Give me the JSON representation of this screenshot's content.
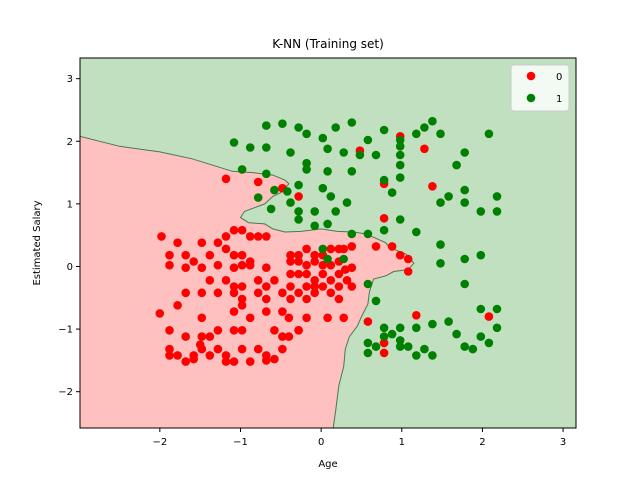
{
  "chart_data": {
    "type": "scatter",
    "title": "K-NN (Training set)",
    "xlabel": "Age",
    "ylabel": "Estimated Salary",
    "xlim": [
      -2.99,
      3.16
    ],
    "ylim": [
      -2.58,
      3.33
    ],
    "xticks": [
      -2,
      -1,
      0,
      1,
      2,
      3
    ],
    "yticks": [
      -2,
      -1,
      0,
      1,
      2,
      3
    ],
    "legend_position": "top-right",
    "background_regions": [
      {
        "class": "0",
        "color": "#ffc0c0",
        "description": "lower-left decision region"
      },
      {
        "class": "1",
        "color": "#c0e0c0",
        "description": "upper/right decision region"
      }
    ],
    "decision_boundary": {
      "color": "#4a7a4a",
      "points": [
        [
          -2.99,
          2.08
        ],
        [
          -2.5,
          1.92
        ],
        [
          -2.0,
          1.83
        ],
        [
          -1.6,
          1.72
        ],
        [
          -1.3,
          1.6
        ],
        [
          -1.1,
          1.52
        ],
        [
          -0.85,
          1.5
        ],
        [
          -0.6,
          1.46
        ],
        [
          -0.45,
          1.38
        ],
        [
          -0.4,
          1.32
        ],
        [
          -0.5,
          1.18
        ],
        [
          -0.6,
          1.12
        ],
        [
          -0.7,
          1.0
        ],
        [
          -0.95,
          0.88
        ],
        [
          -1.0,
          0.78
        ],
        [
          -0.9,
          0.7
        ],
        [
          -0.7,
          0.68
        ],
        [
          -0.6,
          0.6
        ],
        [
          -0.45,
          0.55
        ],
        [
          -0.25,
          0.56
        ],
        [
          0.0,
          0.6
        ],
        [
          0.2,
          0.56
        ],
        [
          0.4,
          0.55
        ],
        [
          0.55,
          0.52
        ],
        [
          0.68,
          0.45
        ],
        [
          0.8,
          0.38
        ],
        [
          0.85,
          0.3
        ],
        [
          0.95,
          0.25
        ],
        [
          1.05,
          0.2
        ],
        [
          1.15,
          0.05
        ],
        [
          1.08,
          -0.05
        ],
        [
          0.9,
          -0.08
        ],
        [
          0.8,
          -0.15
        ],
        [
          0.65,
          -0.2
        ],
        [
          0.6,
          -0.4
        ],
        [
          0.58,
          -0.6
        ],
        [
          0.5,
          -0.8
        ],
        [
          0.45,
          -0.95
        ],
        [
          0.35,
          -1.12
        ],
        [
          0.3,
          -1.32
        ],
        [
          0.28,
          -1.6
        ],
        [
          0.22,
          -1.9
        ],
        [
          0.18,
          -2.3
        ],
        [
          0.15,
          -2.58
        ]
      ]
    },
    "series": [
      {
        "name": "0",
        "color": "#ff0000",
        "points": [
          [
            -1.98,
            0.48
          ],
          [
            -1.78,
            0.38
          ],
          [
            -1.48,
            0.38
          ],
          [
            -1.28,
            0.38
          ],
          [
            -1.18,
            0.48
          ],
          [
            -1.08,
            0.58
          ],
          [
            -0.98,
            0.58
          ],
          [
            -0.88,
            0.48
          ],
          [
            -0.78,
            0.48
          ],
          [
            -0.68,
            0.48
          ],
          [
            -1.88,
            0.18
          ],
          [
            -1.68,
            0.18
          ],
          [
            -1.58,
            0.08
          ],
          [
            -1.38,
            0.18
          ],
          [
            -1.18,
            0.28
          ],
          [
            -1.08,
            0.18
          ],
          [
            -0.98,
            0.18
          ],
          [
            -0.88,
            0.08
          ],
          [
            -1.88,
            0.02
          ],
          [
            -1.68,
            -0.02
          ],
          [
            -1.48,
            -0.02
          ],
          [
            -1.28,
            0.02
          ],
          [
            -1.08,
            -0.02
          ],
          [
            -0.98,
            0.02
          ],
          [
            -0.88,
            0.02
          ],
          [
            -0.68,
            -0.02
          ],
          [
            -1.38,
            -0.22
          ],
          [
            -1.18,
            -0.22
          ],
          [
            -1.08,
            -0.32
          ],
          [
            -0.98,
            -0.32
          ],
          [
            -0.78,
            -0.22
          ],
          [
            -0.68,
            -0.32
          ],
          [
            -0.58,
            -0.22
          ],
          [
            -1.68,
            -0.42
          ],
          [
            -1.48,
            -0.42
          ],
          [
            -1.28,
            -0.42
          ],
          [
            -1.08,
            -0.42
          ],
          [
            -0.98,
            -0.52
          ],
          [
            -0.78,
            -0.42
          ],
          [
            -0.68,
            -0.52
          ],
          [
            -0.48,
            -0.42
          ],
          [
            -2.0,
            -0.75
          ],
          [
            -1.78,
            -0.62
          ],
          [
            -1.48,
            -0.82
          ],
          [
            -1.08,
            -0.72
          ],
          [
            -0.98,
            -0.62
          ],
          [
            -0.88,
            -0.82
          ],
          [
            -0.68,
            -0.72
          ],
          [
            -0.48,
            -0.72
          ],
          [
            -1.88,
            -1.02
          ],
          [
            -1.68,
            -1.12
          ],
          [
            -1.38,
            -1.12
          ],
          [
            -1.28,
            -1.02
          ],
          [
            -1.08,
            -1.02
          ],
          [
            -0.98,
            -1.02
          ],
          [
            -0.58,
            -1.02
          ],
          [
            -0.48,
            -1.12
          ],
          [
            -0.28,
            -1.02
          ],
          [
            -1.88,
            -1.32
          ],
          [
            -1.78,
            -1.42
          ],
          [
            -1.58,
            -1.42
          ],
          [
            -1.48,
            -1.32
          ],
          [
            -1.38,
            -1.42
          ],
          [
            -1.28,
            -1.32
          ],
          [
            -1.18,
            -1.42
          ],
          [
            -0.98,
            -1.32
          ],
          [
            -0.78,
            -1.32
          ],
          [
            -0.68,
            -1.42
          ],
          [
            -0.48,
            -1.32
          ],
          [
            -1.88,
            -1.42
          ],
          [
            -1.68,
            -1.52
          ],
          [
            -1.58,
            -1.48
          ],
          [
            -1.18,
            -1.52
          ],
          [
            -1.08,
            -1.52
          ],
          [
            -0.88,
            -1.52
          ],
          [
            -0.68,
            -1.5
          ],
          [
            -0.58,
            -1.48
          ],
          [
            -1.5,
            -1.25
          ],
          [
            -1.48,
            -1.12
          ],
          [
            -0.38,
            0.18
          ],
          [
            -0.28,
            0.18
          ],
          [
            -0.18,
            0.28
          ],
          [
            -0.08,
            0.18
          ],
          [
            0.02,
            0.18
          ],
          [
            0.12,
            0.28
          ],
          [
            0.22,
            0.28
          ],
          [
            0.28,
            0.28
          ],
          [
            -0.38,
            0.08
          ],
          [
            -0.28,
            0.08
          ],
          [
            -0.18,
            0.02
          ],
          [
            -0.08,
            0.08
          ],
          [
            0.02,
            0.02
          ],
          [
            0.12,
            0.02
          ],
          [
            0.22,
            0.08
          ],
          [
            -0.38,
            -0.12
          ],
          [
            -0.28,
            -0.12
          ],
          [
            -0.18,
            -0.12
          ],
          [
            -0.08,
            -0.22
          ],
          [
            0.02,
            -0.12
          ],
          [
            0.12,
            -0.22
          ],
          [
            0.22,
            -0.12
          ],
          [
            0.32,
            -0.22
          ],
          [
            -0.38,
            -0.32
          ],
          [
            -0.28,
            -0.42
          ],
          [
            -0.18,
            -0.32
          ],
          [
            -0.08,
            -0.32
          ],
          [
            0.02,
            -0.32
          ],
          [
            0.12,
            -0.42
          ],
          [
            0.22,
            -0.32
          ],
          [
            0.38,
            -0.32
          ],
          [
            -0.38,
            -0.52
          ],
          [
            -0.18,
            -0.52
          ],
          [
            -0.08,
            -0.42
          ],
          [
            0.22,
            -0.52
          ],
          [
            0.38,
            0.32
          ],
          [
            0.38,
            -0.02
          ],
          [
            0.3,
            -0.05
          ],
          [
            -0.4,
            -0.82
          ],
          [
            -0.18,
            -0.82
          ],
          [
            0.08,
            -0.82
          ],
          [
            0.28,
            -0.82
          ],
          [
            -0.28,
            -1.02
          ],
          [
            -0.4,
            -1.12
          ],
          [
            0.48,
            1.85
          ],
          [
            0.98,
            2.08
          ],
          [
            0.78,
            1.32
          ],
          [
            1.28,
            1.88
          ],
          [
            1.38,
            1.28
          ],
          [
            0.68,
            0.32
          ],
          [
            0.78,
            0.77
          ],
          [
            0.88,
            0.32
          ],
          [
            0.98,
            0.18
          ],
          [
            1.08,
            0.12
          ],
          [
            1.08,
            -0.08
          ],
          [
            1.18,
            -0.78
          ],
          [
            0.58,
            -0.88
          ],
          [
            0.78,
            -1.22
          ],
          [
            0.78,
            -1.38
          ],
          [
            -0.28,
            1.12
          ],
          [
            -0.48,
            1.25
          ],
          [
            -0.78,
            1.35
          ],
          [
            -1.18,
            1.4
          ],
          [
            2.08,
            -0.8
          ]
        ]
      },
      {
        "name": "1",
        "color": "#008000",
        "points": [
          [
            -0.68,
            2.25
          ],
          [
            -0.48,
            2.28
          ],
          [
            -0.28,
            2.22
          ],
          [
            -0.18,
            2.12
          ],
          [
            0.02,
            2.05
          ],
          [
            0.18,
            2.22
          ],
          [
            0.38,
            2.3
          ],
          [
            0.58,
            2.02
          ],
          [
            0.78,
            2.18
          ],
          [
            0.98,
            2.02
          ],
          [
            1.18,
            2.12
          ],
          [
            1.28,
            2.22
          ],
          [
            1.38,
            2.32
          ],
          [
            1.48,
            2.12
          ],
          [
            2.08,
            2.12
          ],
          [
            -1.08,
            1.98
          ],
          [
            -0.88,
            1.9
          ],
          [
            -0.68,
            1.9
          ],
          [
            -0.38,
            1.82
          ],
          [
            -0.18,
            1.65
          ],
          [
            0.08,
            1.88
          ],
          [
            0.28,
            1.82
          ],
          [
            0.48,
            1.78
          ],
          [
            0.68,
            1.78
          ],
          [
            0.98,
            1.92
          ],
          [
            0.98,
            1.78
          ],
          [
            0.98,
            1.62
          ],
          [
            1.68,
            1.62
          ],
          [
            1.78,
            1.82
          ],
          [
            -0.98,
            1.55
          ],
          [
            -0.68,
            1.48
          ],
          [
            -0.18,
            1.55
          ],
          [
            0.08,
            1.52
          ],
          [
            0.38,
            1.52
          ],
          [
            0.78,
            1.38
          ],
          [
            0.88,
            1.18
          ],
          [
            0.98,
            1.42
          ],
          [
            1.78,
            1.22
          ],
          [
            -0.58,
            1.22
          ],
          [
            -0.42,
            1.2
          ],
          [
            -0.28,
            1.3
          ],
          [
            0.02,
            1.25
          ],
          [
            0.12,
            1.12
          ],
          [
            0.32,
            1.02
          ],
          [
            -0.78,
            1.1
          ],
          [
            -0.62,
            0.92
          ],
          [
            -0.38,
            1.02
          ],
          [
            -0.28,
            0.88
          ],
          [
            -0.08,
            0.88
          ],
          [
            0.18,
            0.88
          ],
          [
            1.48,
            1.02
          ],
          [
            1.58,
            1.12
          ],
          [
            1.78,
            1.02
          ],
          [
            1.98,
            0.88
          ],
          [
            2.18,
            0.88
          ],
          [
            2.18,
            1.12
          ],
          [
            -0.28,
            0.75
          ],
          [
            -0.08,
            0.65
          ],
          [
            0.08,
            0.68
          ],
          [
            0.38,
            0.52
          ],
          [
            0.58,
            0.52
          ],
          [
            0.78,
            0.58
          ],
          [
            0.98,
            0.75
          ],
          [
            1.18,
            0.55
          ],
          [
            1.48,
            0.35
          ],
          [
            0.02,
            0.28
          ],
          [
            0.28,
            0.12
          ],
          [
            0.08,
            0.12
          ],
          [
            1.48,
            0.05
          ],
          [
            1.78,
            0.12
          ],
          [
            1.98,
            0.18
          ],
          [
            1.78,
            -0.28
          ],
          [
            0.58,
            -0.28
          ],
          [
            0.68,
            -0.55
          ],
          [
            2.18,
            -0.68
          ],
          [
            1.98,
            -0.68
          ],
          [
            1.58,
            -0.88
          ],
          [
            1.38,
            -0.92
          ],
          [
            1.18,
            -0.98
          ],
          [
            0.98,
            -0.98
          ],
          [
            0.88,
            -1.08
          ],
          [
            0.98,
            -1.18
          ],
          [
            0.78,
            -1.12
          ],
          [
            0.58,
            -1.22
          ],
          [
            0.68,
            -1.28
          ],
          [
            0.58,
            -1.38
          ],
          [
            1.08,
            -1.28
          ],
          [
            1.18,
            -1.42
          ],
          [
            1.38,
            -1.42
          ],
          [
            1.78,
            -1.28
          ],
          [
            1.98,
            -1.12
          ],
          [
            1.88,
            -1.32
          ],
          [
            2.18,
            -0.98
          ],
          [
            2.08,
            -1.22
          ],
          [
            1.68,
            -1.08
          ],
          [
            0.78,
            -0.98
          ],
          [
            0.98,
            -1.28
          ],
          [
            1.28,
            -1.32
          ]
        ]
      }
    ]
  }
}
